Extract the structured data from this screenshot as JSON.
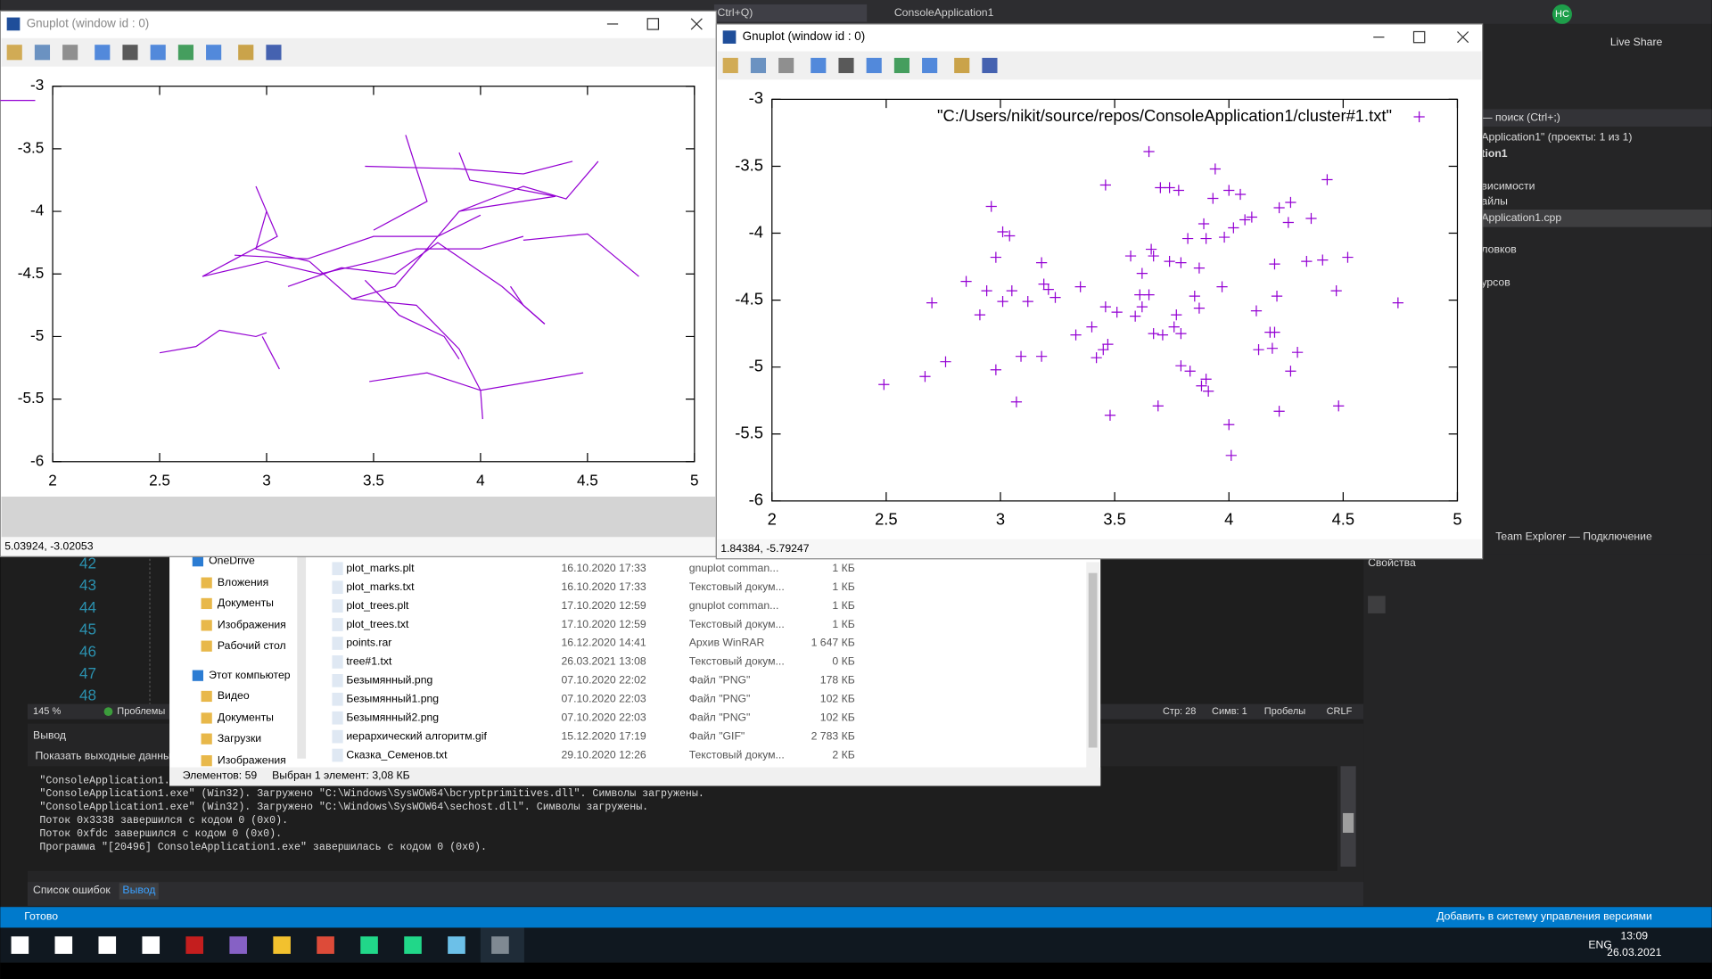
{
  "vs": {
    "search": "Ctrl+Q)",
    "project": "ConsoleApplication1",
    "user": "НС",
    "live_share": "Live Share",
    "solution_explorer": [
      "— поиск (Ctrl+;)",
      "Application1\" (проекты: 1 из 1)",
      "tion1",
      "висимости",
      "айлы",
      "Application1.cpp",
      "ловков",
      "урсов"
    ],
    "team_explorer": "Team Explorer — Подключение",
    "properties": "Свойства",
    "line_numbers": [
      42,
      43,
      44,
      45,
      46,
      47,
      48
    ],
    "zoom": "145 %",
    "problems": "Проблемы",
    "position": [
      "Стр: 28",
      "Симв: 1",
      "Пробелы",
      "CRLF"
    ],
    "output": {
      "title": "Вывод",
      "show_label": "Показать выходные данные",
      "lines": [
        "\"ConsoleApplication1.",
        "\"ConsoleApplication1.exe\" (Win32). Загружено \"C:\\Windows\\SysWOW64\\bcryptprimitives.dll\". Символы загружены.",
        "\"ConsoleApplication1.exe\" (Win32). Загружено \"C:\\Windows\\SysWOW64\\sechost.dll\". Символы загружены.",
        "Поток 0x3338 завершился с кодом 0 (0x0).",
        "Поток 0xfdc завершился с кодом 0 (0x0).",
        "Программа \"[20496] ConsoleApplication1.exe\" завершилась с кодом 0 (0x0)."
      ]
    },
    "tabs": [
      "Список ошибок",
      "Вывод"
    ],
    "status": "Готово",
    "source_control": "Добавить в систему управления версиями"
  },
  "explorer": {
    "nav": [
      "OneDrive",
      "Вложения",
      "Документы",
      "Изображения",
      "Рабочий стол",
      "Этот компьютер",
      "Видео",
      "Документы",
      "Загрузки",
      "Изображения"
    ],
    "files": [
      [
        "plot_marks.plt",
        "16.10.2020 17:33",
        "gnuplot comman...",
        "1 КБ"
      ],
      [
        "plot_marks.txt",
        "16.10.2020 17:33",
        "Текстовый докум...",
        "1 КБ"
      ],
      [
        "plot_trees.plt",
        "17.10.2020 12:59",
        "gnuplot comman...",
        "1 КБ"
      ],
      [
        "plot_trees.txt",
        "17.10.2020 12:59",
        "Текстовый докум...",
        "1 КБ"
      ],
      [
        "points.rar",
        "16.12.2020 14:41",
        "Архив WinRAR",
        "1 647 КБ"
      ],
      [
        "tree#1.txt",
        "26.03.2021 13:08",
        "Текстовый докум...",
        "0 КБ"
      ],
      [
        "Безымянный.png",
        "07.10.2020 22:02",
        "Файл \"PNG\"",
        "178 КБ"
      ],
      [
        "Безымянный1.png",
        "07.10.2020 22:03",
        "Файл \"PNG\"",
        "102 КБ"
      ],
      [
        "Безымянный2.png",
        "07.10.2020 22:03",
        "Файл \"PNG\"",
        "102 КБ"
      ],
      [
        "иерархический алгоритм.gif",
        "15.12.2020 17:19",
        "Файл \"GIF\"",
        "2 783 КБ"
      ],
      [
        "Сказка_Семенов.txt",
        "29.10.2020 12:26",
        "Текстовый докум...",
        "2 КБ"
      ]
    ],
    "count": "Элементов: 59",
    "selected": "Выбран 1 элемент: 3,08 КБ"
  },
  "left_plot": {
    "type": "lines",
    "title": "Gnuplot (window id : 0)",
    "color": "#9400d3",
    "xlim": [
      2,
      5
    ],
    "ylim": [
      -6,
      -3
    ],
    "xticks": [
      2,
      2.5,
      3,
      3.5,
      4,
      4.5,
      5
    ],
    "yticks": [
      -3,
      -3.5,
      -4,
      -4.5,
      -5,
      -5.5,
      -6
    ],
    "status": "5.03924, -3.02053",
    "lines": [
      {
        "x": [
          2.5,
          2.67,
          2.78,
          2.95,
          3.0
        ],
        "y": [
          -5.13,
          -5.08,
          -4.95,
          -5.0,
          -4.97
        ]
      },
      {
        "x": [
          2.98,
          3.06
        ],
        "y": [
          -5.0,
          -5.26
        ]
      },
      {
        "x": [
          2.7,
          3.0,
          3.25,
          3.5,
          3.7,
          4.0,
          4.2
        ],
        "y": [
          -4.52,
          -4.4,
          -4.5,
          -4.4,
          -4.3,
          -4.3,
          -4.2
        ]
      },
      {
        "x": [
          2.95,
          3.0,
          3.05,
          2.7
        ],
        "y": [
          -3.8,
          -4.0,
          -4.2,
          -4.52
        ]
      },
      {
        "x": [
          3.0,
          2.95,
          3.2
        ],
        "y": [
          -4.0,
          -4.3,
          -4.4
        ]
      },
      {
        "x": [
          3.46,
          3.9,
          4.2,
          4.43
        ],
        "y": [
          -3.64,
          -3.66,
          -3.7,
          -3.6
        ]
      },
      {
        "x": [
          3.65,
          3.7,
          3.75,
          3.5
        ],
        "y": [
          -3.39,
          -3.66,
          -3.92,
          -4.15
        ]
      },
      {
        "x": [
          3.9,
          3.95,
          4.35
        ],
        "y": [
          -3.53,
          -3.75,
          -3.88
        ]
      },
      {
        "x": [
          4.2,
          4.5,
          4.74
        ],
        "y": [
          -4.23,
          -4.18,
          -4.52
        ]
      },
      {
        "x": [
          4.14,
          4.2,
          4.3
        ],
        "y": [
          -4.6,
          -4.75,
          -4.9
        ]
      },
      {
        "x": [
          3.48,
          3.75,
          4.0,
          4.48
        ],
        "y": [
          -5.36,
          -5.29,
          -5.43,
          -5.29
        ]
      },
      {
        "x": [
          4.0,
          4.01
        ],
        "y": [
          -5.43,
          -5.66
        ]
      },
      {
        "x": [
          3.4,
          3.7,
          3.9,
          4.0
        ],
        "y": [
          -4.7,
          -4.75,
          -5.1,
          -5.43
        ]
      },
      {
        "x": [
          3.2,
          3.4,
          3.6,
          3.9,
          4.0,
          4.35
        ],
        "y": [
          -4.4,
          -4.7,
          -4.6,
          -4.0,
          -3.97,
          -3.88
        ]
      },
      {
        "x": [
          3.1,
          3.35,
          3.6,
          3.8,
          4.1,
          4.3
        ],
        "y": [
          -4.6,
          -4.45,
          -4.5,
          -4.25,
          -4.6,
          -4.9
        ]
      },
      {
        "x": [
          3.9,
          4.2,
          4.4,
          4.55
        ],
        "y": [
          -4.0,
          -3.8,
          -3.9,
          -3.6
        ]
      },
      {
        "x": [
          2.85,
          3.19,
          3.5,
          3.8,
          4.0
        ],
        "y": [
          -4.35,
          -4.38,
          -4.2,
          -4.2,
          -4.03
        ]
      },
      {
        "x": [
          3.46,
          3.62,
          3.83,
          3.9
        ],
        "y": [
          -4.55,
          -4.83,
          -5.0,
          -5.18
        ]
      }
    ]
  },
  "right_plot": {
    "type": "scatter",
    "title": "Gnuplot (window id : 0)",
    "legend": "\"C:/Users/nikit/source/repos/ConsoleApplication1/cluster#1.txt\"",
    "color": "#9400d3",
    "xlim": [
      2,
      5
    ],
    "ylim": [
      -6,
      -3
    ],
    "xticks": [
      2,
      2.5,
      3,
      3.5,
      4,
      4.5,
      5
    ],
    "yticks": [
      -3,
      -3.5,
      -4,
      -4.5,
      -5,
      -5.5,
      -6
    ],
    "status": "1.84384, -5.79247",
    "x": [
      3.65,
      3.94,
      4.43,
      3.46,
      3.7,
      3.74,
      3.78,
      4.0,
      4.05,
      3.93,
      4.27,
      4.22,
      2.96,
      4.1,
      4.07,
      4.36,
      3.89,
      4.26,
      4.02,
      3.01,
      3.04,
      3.98,
      3.9,
      3.82,
      3.66,
      3.67,
      3.57,
      4.52,
      2.98,
      3.74,
      3.79,
      4.34,
      4.41,
      4.2,
      3.18,
      3.87,
      3.62,
      2.85,
      3.19,
      3.21,
      3.35,
      3.97,
      2.94,
      3.05,
      4.47,
      3.61,
      3.65,
      3.24,
      4.21,
      3.85,
      3.12,
      3.01,
      4.74,
      2.7,
      3.62,
      3.46,
      3.51,
      3.87,
      4.12,
      2.91,
      3.77,
      3.59,
      3.76,
      3.4,
      3.67,
      3.71,
      3.33,
      4.18,
      4.2,
      3.79,
      3.47,
      3.45,
      4.13,
      4.19,
      4.3,
      3.09,
      3.18,
      3.42,
      2.76,
      3.79,
      3.83,
      2.98,
      4.27,
      2.67,
      3.9,
      3.88,
      3.91,
      2.49,
      3.07,
      3.69,
      4.48,
      4.22,
      3.48,
      4.0,
      4.01
    ],
    "y": [
      -3.39,
      -3.52,
      -3.6,
      -3.64,
      -3.66,
      -3.66,
      -3.68,
      -3.68,
      -3.71,
      -3.74,
      -3.77,
      -3.81,
      -3.8,
      -3.88,
      -3.9,
      -3.89,
      -3.93,
      -3.92,
      -3.96,
      -3.99,
      -4.02,
      -4.03,
      -4.04,
      -4.04,
      -4.12,
      -4.17,
      -4.17,
      -4.18,
      -4.18,
      -4.21,
      -4.22,
      -4.21,
      -4.2,
      -4.23,
      -4.22,
      -4.26,
      -4.3,
      -4.36,
      -4.38,
      -4.42,
      -4.4,
      -4.4,
      -4.43,
      -4.43,
      -4.43,
      -4.46,
      -4.46,
      -4.48,
      -4.47,
      -4.47,
      -4.51,
      -4.51,
      -4.52,
      -4.52,
      -4.55,
      -4.55,
      -4.59,
      -4.56,
      -4.58,
      -4.61,
      -4.61,
      -4.62,
      -4.7,
      -4.7,
      -4.75,
      -4.76,
      -4.76,
      -4.74,
      -4.74,
      -4.75,
      -4.83,
      -4.87,
      -4.87,
      -4.86,
      -4.89,
      -4.92,
      -4.92,
      -4.93,
      -4.96,
      -4.99,
      -5.03,
      -5.02,
      -5.03,
      -5.07,
      -5.09,
      -5.14,
      -5.18,
      -5.13,
      -5.26,
      -5.29,
      -5.29,
      -5.33,
      -5.36,
      -5.43,
      -5.66
    ]
  },
  "taskbar": {
    "lang": "ENG",
    "time": "13:09",
    "date": "26.03.2021"
  }
}
